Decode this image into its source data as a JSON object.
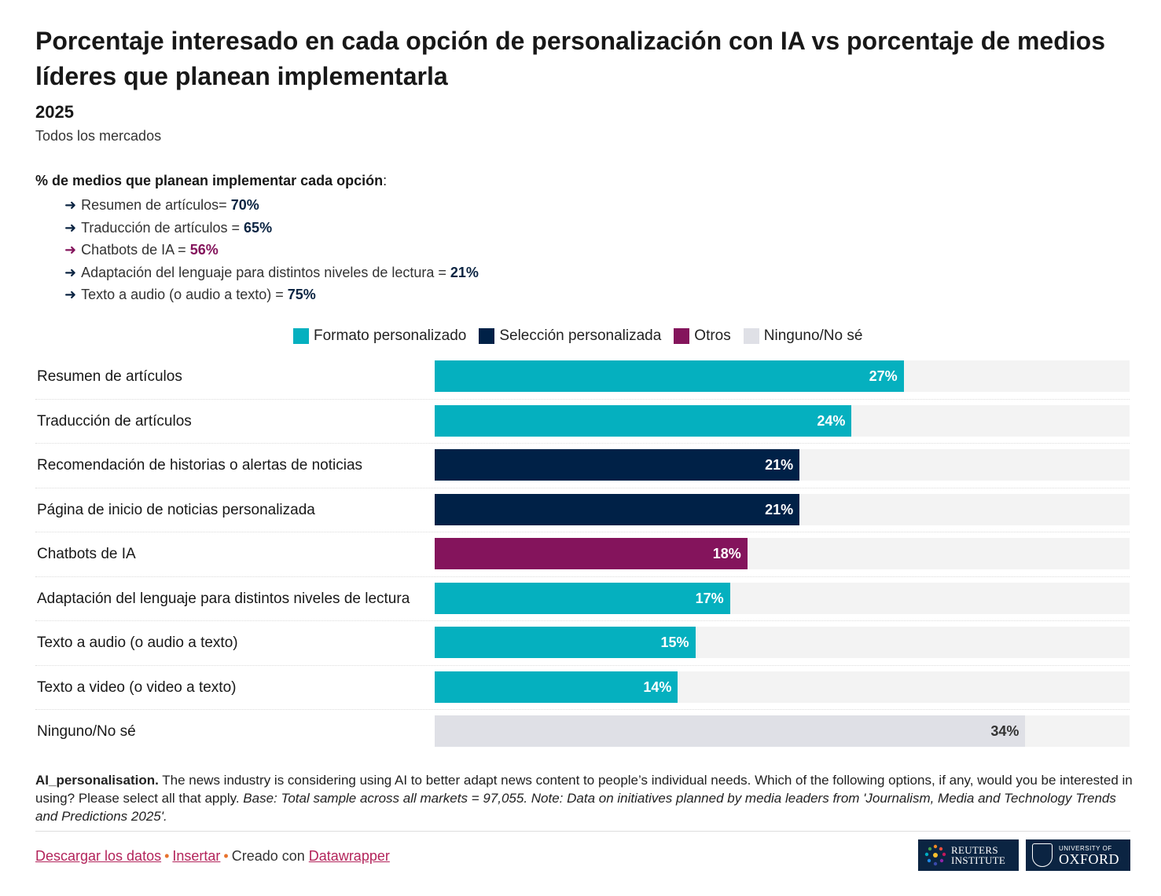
{
  "title": "Porcentaje interesado en cada opción de personalización con IA vs porcentaje de medios líderes que planean implementarla",
  "year": "2025",
  "subtitle": "Todos los mercados",
  "plan": {
    "heading": "% de medios que planean implementar cada opción",
    "heading_suffix": ":",
    "arrow": "➜",
    "items": [
      {
        "text": "Resumen de artículos= ",
        "value": "70%",
        "color": "#0b2442"
      },
      {
        "text": "Traducción de artículos = ",
        "value": "65%",
        "color": "#0b2442"
      },
      {
        "text": "Chatbots de IA = ",
        "value": "56%",
        "color": "#84145c"
      },
      {
        "text": "Adaptación del lenguaje para distintos niveles de lectura = ",
        "value": "21%",
        "color": "#0b2442"
      },
      {
        "text": "Texto a audio (o audio a texto) = ",
        "value": "75%",
        "color": "#0b2442"
      }
    ]
  },
  "legend": [
    {
      "label": "Formato personalizado",
      "color": "#05b0bf"
    },
    {
      "label": "Selección personalizada",
      "color": "#002147"
    },
    {
      "label": "Otros",
      "color": "#84145c"
    },
    {
      "label": "Ninguno/No sé",
      "color": "#dfe0e6"
    }
  ],
  "chart_data": {
    "type": "bar",
    "orientation": "horizontal",
    "categories": [
      "Resumen de artículos",
      "Traducción de artículos",
      "Recomendación de historias o alertas de noticias",
      "Página de inicio de noticias personalizada",
      "Chatbots de IA",
      "Adaptación del lenguaje para distintos niveles de lectura",
      "Texto a audio (o audio a texto)",
      "Texto a video (o video a texto)",
      "Ninguno/No sé"
    ],
    "values": [
      27,
      24,
      21,
      21,
      18,
      17,
      15,
      14,
      34
    ],
    "value_labels": [
      "27%",
      "24%",
      "21%",
      "21%",
      "18%",
      "17%",
      "15%",
      "14%",
      "34%"
    ],
    "groups": [
      "Formato personalizado",
      "Formato personalizado",
      "Selección personalizada",
      "Selección personalizada",
      "Otros",
      "Formato personalizado",
      "Formato personalizado",
      "Formato personalizado",
      "Ninguno/No sé"
    ],
    "xlim": [
      0,
      40
    ],
    "unit": "%"
  },
  "notes": {
    "bold": "AI_personalisation.",
    "text": " The news industry is considering using AI to better adapt news content to people’s individual needs. Which of the following options, if any, would you be interested in using? Please select all that apply. ",
    "italic": "Base: Total sample across all markets = 97,055. Note: Data on initiatives planned by media leaders from 'Journalism, Media and Technology Trends and Predictions 2025'."
  },
  "footer": {
    "download": "Descargar los datos",
    "separator": "•",
    "embed": "Insertar",
    "created_with": "Creado con ",
    "tool": "Datawrapper"
  },
  "logos": {
    "reuters_line1": "REUTERS",
    "reuters_line2": "INSTITUTE",
    "oxford_small": "UNIVERSITY OF",
    "oxford_big": "OXFORD"
  }
}
